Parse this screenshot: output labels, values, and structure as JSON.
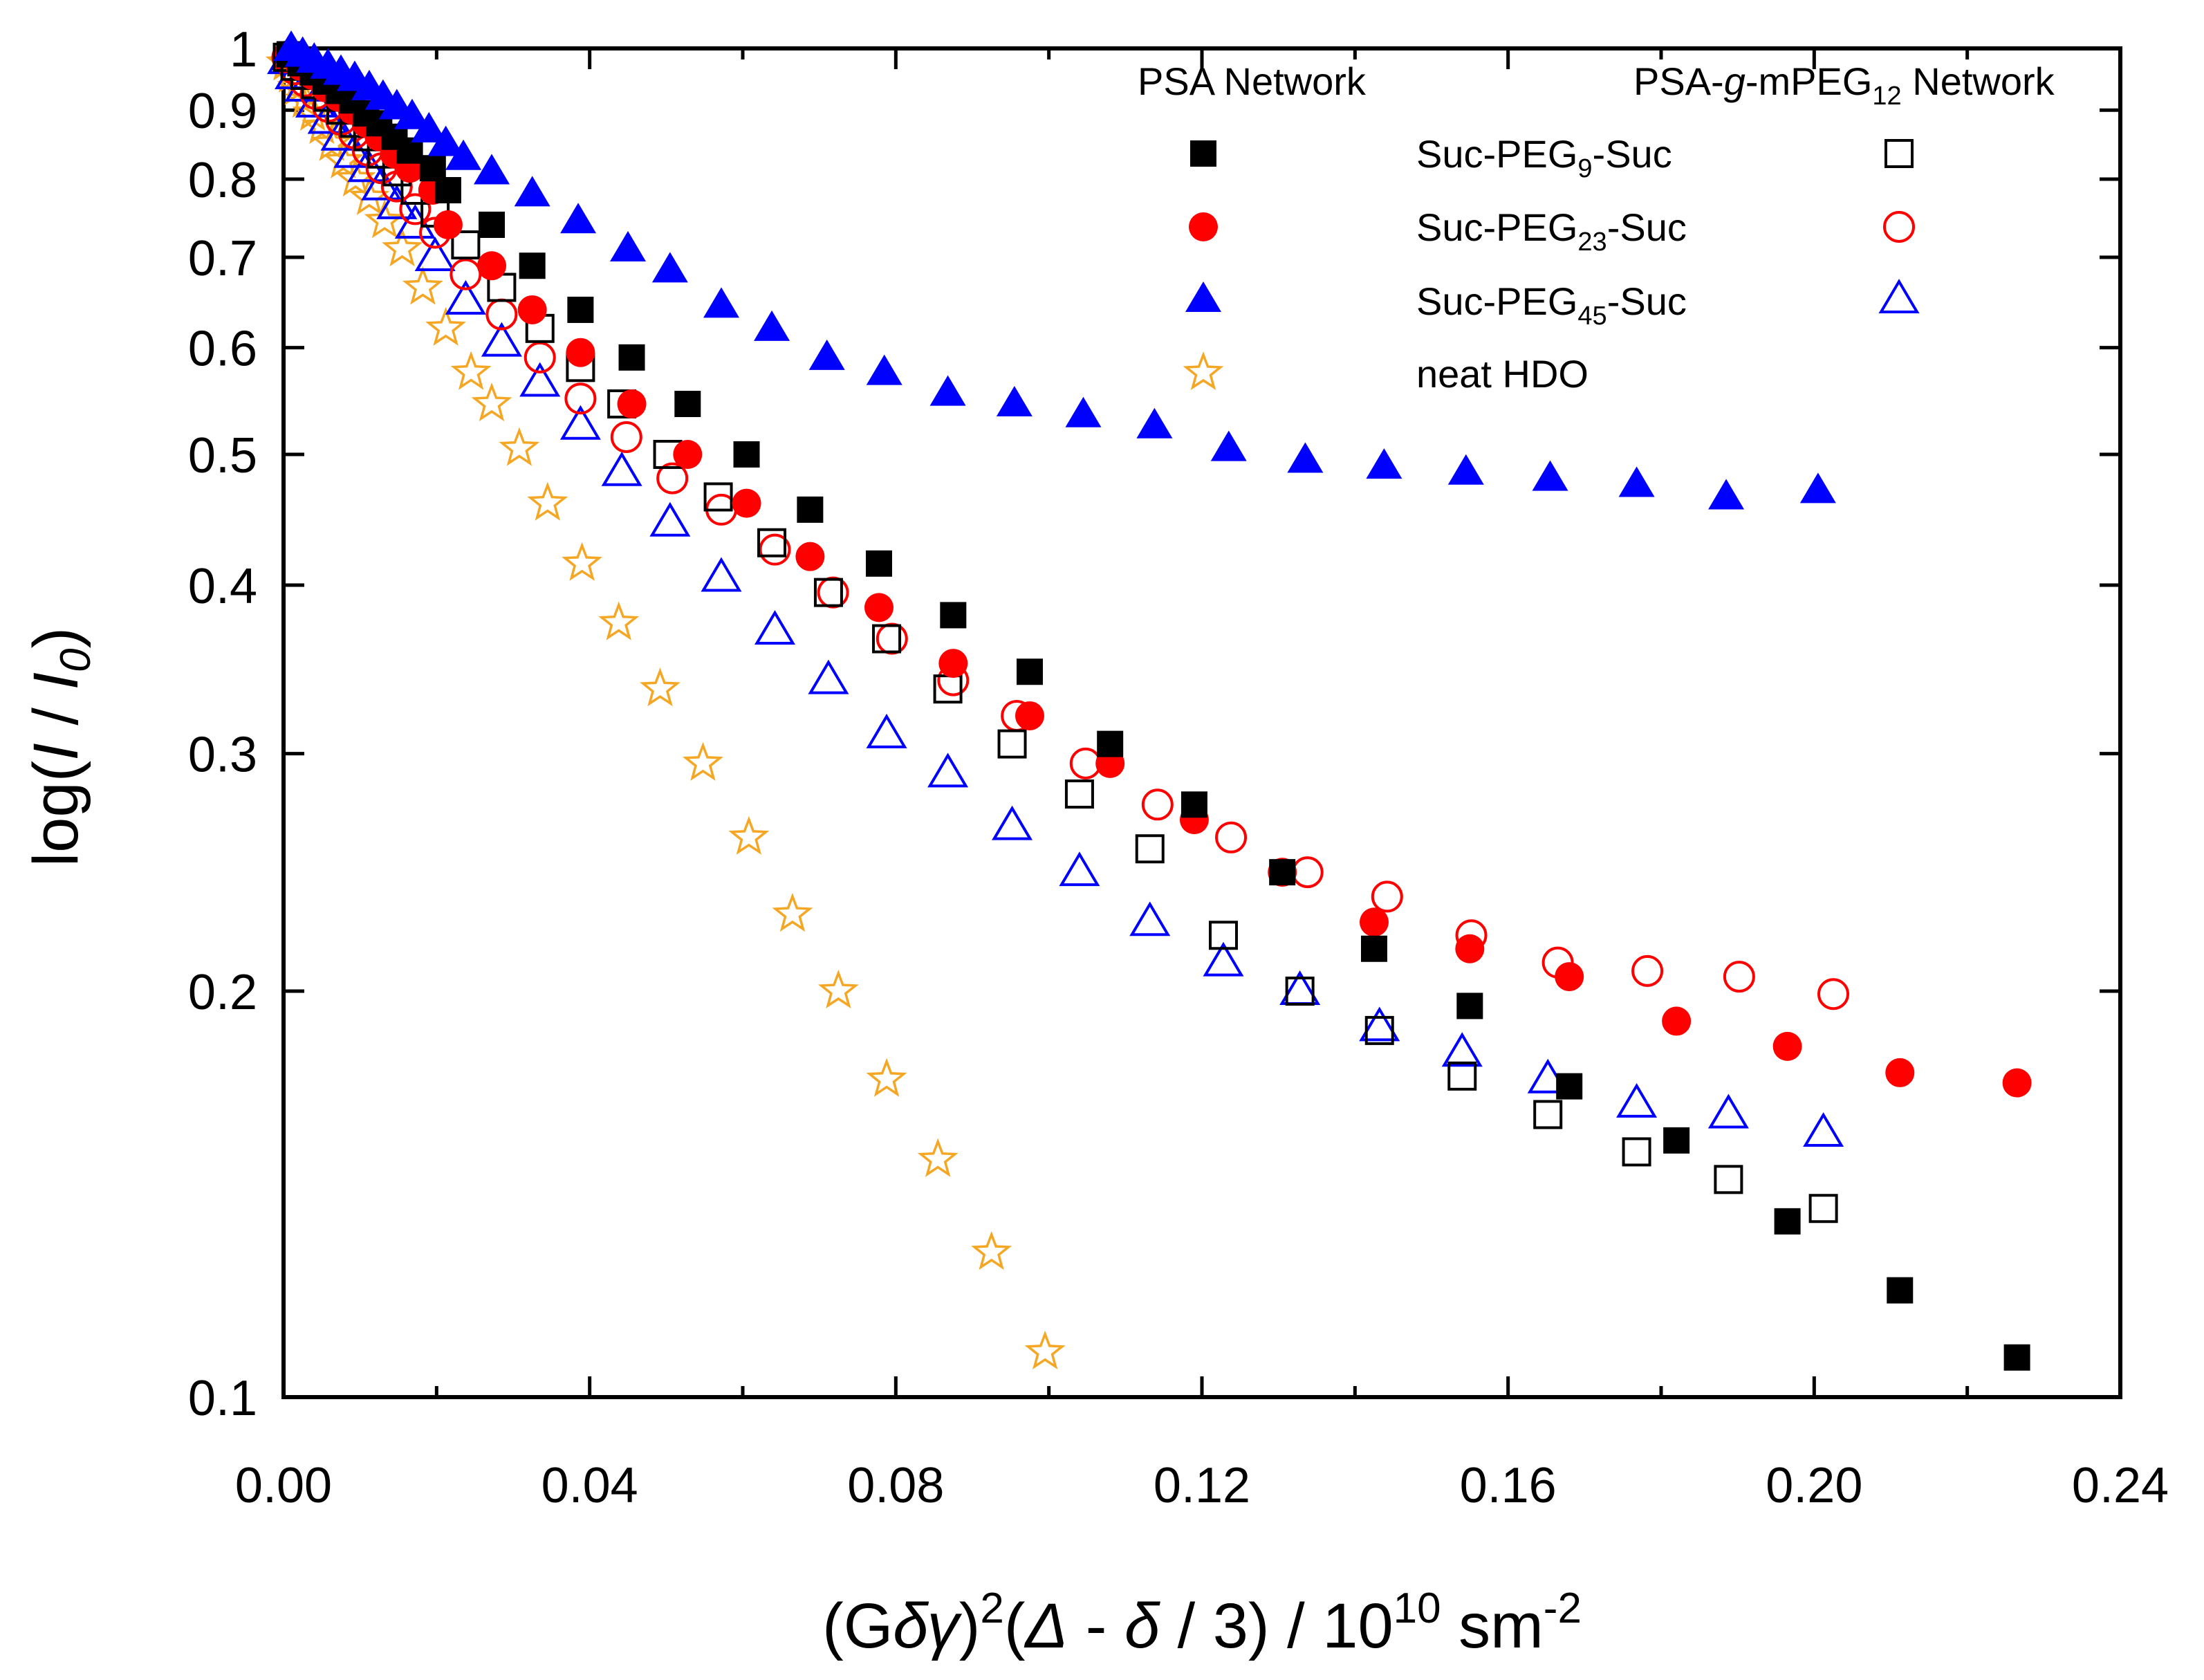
{
  "chart_data": {
    "type": "scatter",
    "title": "",
    "ylabel": {
      "main": "log(",
      "i": "I",
      "sep": " / ",
      "i0": "I",
      "sub0": "0",
      "close": ")"
    },
    "xlabel": {
      "open": "(G",
      "delta": "δ",
      "gamma": "γ",
      "close": ")",
      "sup2": "2",
      "p2": "(",
      "Delta": "Δ",
      "mid": " - ",
      "delta2": "δ",
      "tail": " / 3) / 10",
      "sup10": "10",
      "unit": " sm",
      "supm2": "-2"
    },
    "x_ticks": [
      "0.00",
      "0.04",
      "0.08",
      "0.12",
      "0.16",
      "0.20",
      "0.24"
    ],
    "y_ticks": [
      "0.1",
      "0.2",
      "0.3",
      "0.4",
      "0.5",
      "0.6",
      "0.7",
      "0.8",
      "0.9",
      "1"
    ],
    "xlim": [
      0,
      0.24
    ],
    "ylim": [
      0.1,
      1
    ],
    "yscale": "log",
    "legend": {
      "placement": "top-right",
      "header_left": "PSA Network",
      "header_right": {
        "pre": "PSA-",
        "g": "g",
        "post": "-mPEG",
        "sub": "12",
        "tail": " Network"
      },
      "rows": [
        {
          "pre": "Suc-PEG",
          "sub": "9",
          "post": "-Suc"
        },
        {
          "pre": "Suc-PEG",
          "sub": "23",
          "post": "-Suc"
        },
        {
          "pre": "Suc-PEG",
          "sub": "45",
          "post": "-Suc"
        },
        {
          "pre": "neat HDO",
          "sub": "",
          "post": ""
        }
      ]
    },
    "series": [
      {
        "name": "PSA Network Suc-PEG9-Suc",
        "marker": "square",
        "filled": true,
        "color": "#000000",
        "x": [
          0.0008,
          0.0022,
          0.0038,
          0.0055,
          0.0072,
          0.009,
          0.0108,
          0.0125,
          0.0145,
          0.0165,
          0.0195,
          0.0215,
          0.0272,
          0.0325,
          0.0388,
          0.0455,
          0.0528,
          0.0605,
          0.0688,
          0.0778,
          0.0875,
          0.0975,
          0.108,
          0.119,
          0.1305,
          0.1425,
          0.155,
          0.168,
          0.182,
          0.1965,
          0.2112,
          0.2265
        ],
        "y": [
          0.99,
          0.975,
          0.96,
          0.945,
          0.93,
          0.915,
          0.895,
          0.88,
          0.86,
          0.84,
          0.815,
          0.785,
          0.74,
          0.69,
          0.64,
          0.59,
          0.545,
          0.5,
          0.455,
          0.415,
          0.38,
          0.345,
          0.305,
          0.275,
          0.245,
          0.215,
          0.195,
          0.17,
          0.155,
          0.135,
          0.12,
          0.107
        ]
      },
      {
        "name": "PSA Network Suc-PEG23-Suc",
        "marker": "circle",
        "filled": true,
        "color": "#ff0000",
        "x": [
          0.0008,
          0.0022,
          0.0038,
          0.0055,
          0.0072,
          0.009,
          0.0108,
          0.0125,
          0.0145,
          0.0165,
          0.0195,
          0.0215,
          0.0272,
          0.0325,
          0.0388,
          0.0455,
          0.0528,
          0.0605,
          0.0688,
          0.0778,
          0.0875,
          0.0975,
          0.108,
          0.119,
          0.1305,
          0.1425,
          0.155,
          0.168,
          0.182,
          0.1965,
          0.2112,
          0.2265
        ],
        "y": [
          0.99,
          0.97,
          0.955,
          0.935,
          0.92,
          0.9,
          0.88,
          0.86,
          0.835,
          0.815,
          0.785,
          0.74,
          0.69,
          0.64,
          0.595,
          0.545,
          0.5,
          0.46,
          0.42,
          0.385,
          0.35,
          0.32,
          0.295,
          0.268,
          0.245,
          0.225,
          0.215,
          0.205,
          0.19,
          0.182,
          0.174,
          0.171
        ]
      },
      {
        "name": "PSA Network Suc-PEG45-Suc",
        "marker": "triangle",
        "filled": true,
        "color": "#0000ff",
        "x": [
          0.001,
          0.0025,
          0.004,
          0.0058,
          0.0075,
          0.0093,
          0.0112,
          0.013,
          0.0148,
          0.0168,
          0.019,
          0.0212,
          0.0235,
          0.0272,
          0.0325,
          0.0385,
          0.045,
          0.0505,
          0.0572,
          0.0638,
          0.071,
          0.0785,
          0.0868,
          0.0955,
          0.1045,
          0.1138,
          0.1235,
          0.1335,
          0.1438,
          0.1545,
          0.1655,
          0.1768,
          0.1885,
          0.2005
        ],
        "y": [
          1.0,
          0.99,
          0.98,
          0.97,
          0.96,
          0.95,
          0.935,
          0.92,
          0.905,
          0.89,
          0.87,
          0.85,
          0.83,
          0.81,
          0.78,
          0.745,
          0.71,
          0.685,
          0.645,
          0.62,
          0.59,
          0.575,
          0.555,
          0.545,
          0.535,
          0.525,
          0.505,
          0.495,
          0.49,
          0.485,
          0.48,
          0.475,
          0.465,
          0.47
        ]
      },
      {
        "name": "PSA-g-mPEG12 Network Suc-PEG9-Suc",
        "marker": "square",
        "filled": false,
        "color": "#000000",
        "x": [
          0.0005,
          0.0015,
          0.0028,
          0.0042,
          0.0058,
          0.0075,
          0.0092,
          0.011,
          0.0128,
          0.0148,
          0.0172,
          0.0198,
          0.0238,
          0.0285,
          0.0335,
          0.0388,
          0.0442,
          0.0502,
          0.0568,
          0.0638,
          0.0712,
          0.0788,
          0.0868,
          0.0952,
          0.104,
          0.1132,
          0.1228,
          0.1328,
          0.1432,
          0.154,
          0.1652,
          0.1768,
          0.1888,
          0.2012
        ],
        "y": [
          0.985,
          0.97,
          0.955,
          0.94,
          0.92,
          0.9,
          0.88,
          0.86,
          0.835,
          0.81,
          0.785,
          0.755,
          0.715,
          0.665,
          0.62,
          0.58,
          0.545,
          0.5,
          0.465,
          0.43,
          0.395,
          0.365,
          0.335,
          0.305,
          0.28,
          0.255,
          0.22,
          0.2,
          0.187,
          0.173,
          0.162,
          0.152,
          0.145,
          0.138
        ]
      },
      {
        "name": "PSA-g-mPEG12 Network Suc-PEG23-Suc",
        "marker": "circle",
        "filled": false,
        "color": "#ff0000",
        "x": [
          0.0005,
          0.0015,
          0.0028,
          0.0042,
          0.0058,
          0.0075,
          0.0092,
          0.011,
          0.0128,
          0.0148,
          0.0172,
          0.0198,
          0.0238,
          0.0285,
          0.0335,
          0.0388,
          0.0448,
          0.0508,
          0.0572,
          0.0642,
          0.0718,
          0.0795,
          0.0875,
          0.0958,
          0.1048,
          0.1142,
          0.1238,
          0.1338,
          0.1442,
          0.1552,
          0.1665,
          0.1782,
          0.1902,
          0.2025
        ],
        "y": [
          0.985,
          0.965,
          0.945,
          0.925,
          0.905,
          0.885,
          0.865,
          0.84,
          0.815,
          0.79,
          0.76,
          0.73,
          0.68,
          0.635,
          0.59,
          0.55,
          0.515,
          0.48,
          0.455,
          0.425,
          0.395,
          0.365,
          0.34,
          0.32,
          0.295,
          0.275,
          0.26,
          0.245,
          0.235,
          0.22,
          0.21,
          0.207,
          0.205,
          0.199
        ]
      },
      {
        "name": "PSA-g-mPEG12 Network Suc-PEG45-Suc",
        "marker": "triangle",
        "filled": false,
        "color": "#0000ff",
        "x": [
          0.0005,
          0.0015,
          0.0028,
          0.0042,
          0.0058,
          0.0075,
          0.0092,
          0.011,
          0.0128,
          0.0148,
          0.0172,
          0.0198,
          0.0238,
          0.0285,
          0.0335,
          0.0388,
          0.0442,
          0.0505,
          0.0572,
          0.0642,
          0.0712,
          0.0788,
          0.0868,
          0.0952,
          0.104,
          0.1132,
          0.1228,
          0.1328,
          0.1432,
          0.154,
          0.1652,
          0.1768,
          0.1888,
          0.2012
        ],
        "y": [
          0.98,
          0.955,
          0.935,
          0.91,
          0.885,
          0.86,
          0.835,
          0.815,
          0.79,
          0.765,
          0.74,
          0.7,
          0.65,
          0.605,
          0.565,
          0.525,
          0.485,
          0.445,
          0.405,
          0.37,
          0.34,
          0.31,
          0.29,
          0.265,
          0.245,
          0.225,
          0.21,
          0.2,
          0.188,
          0.18,
          0.172,
          0.165,
          0.162,
          0.157
        ]
      },
      {
        "name": "neat HDO",
        "marker": "star",
        "filled": false,
        "color": "#f5a623",
        "x": [
          0.0003,
          0.001,
          0.0018,
          0.0028,
          0.0038,
          0.005,
          0.0063,
          0.0078,
          0.0094,
          0.0112,
          0.0132,
          0.0155,
          0.0182,
          0.0212,
          0.0245,
          0.0272,
          0.0308,
          0.0345,
          0.039,
          0.0438,
          0.0492,
          0.0548,
          0.0608,
          0.0665,
          0.0725,
          0.0788,
          0.0855,
          0.0925,
          0.0995
        ],
        "y": [
          0.975,
          0.955,
          0.935,
          0.915,
          0.895,
          0.875,
          0.85,
          0.825,
          0.8,
          0.775,
          0.745,
          0.71,
          0.665,
          0.62,
          0.575,
          0.545,
          0.505,
          0.46,
          0.415,
          0.375,
          0.335,
          0.295,
          0.26,
          0.228,
          0.2,
          0.172,
          0.15,
          0.128,
          0.108
        ]
      }
    ]
  }
}
